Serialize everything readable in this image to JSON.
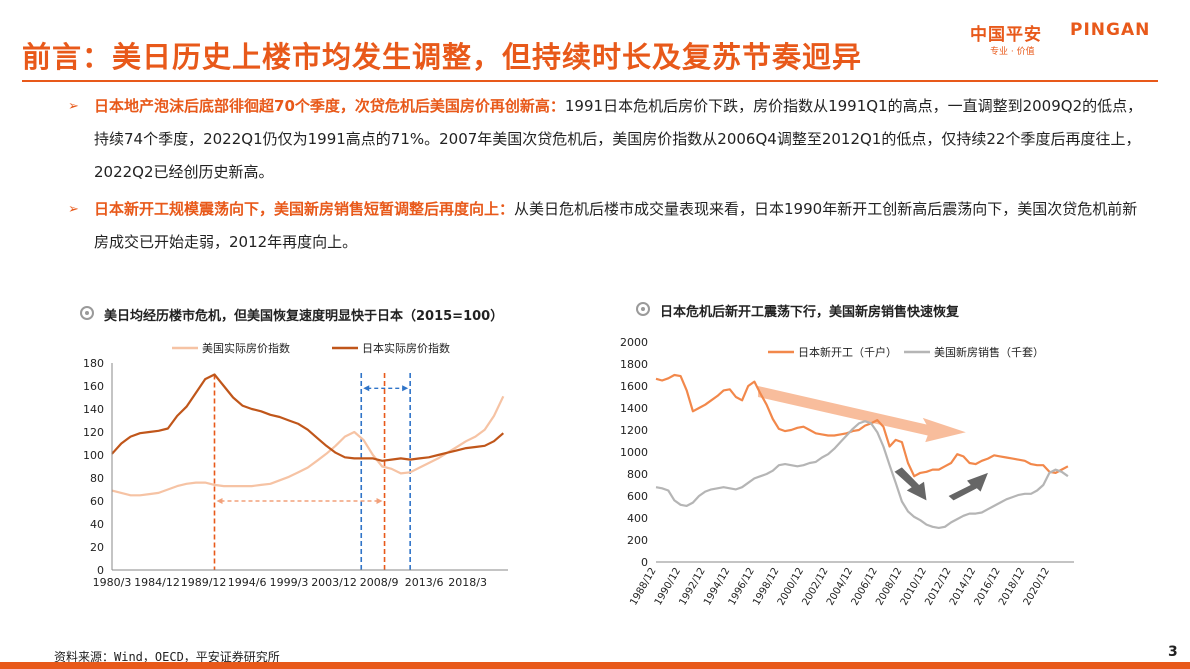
{
  "header": {
    "title": "前言：美日历史上楼市均发生调整，但持续时长及复苏节奏迥异",
    "logo_cn": "中国平安",
    "logo_en": "PINGAN",
    "logo_sub": "专业 · 价值"
  },
  "bullets": [
    {
      "highlight": "日本地产泡沫后底部徘徊超70个季度，次贷危机后美国房价再创新高：",
      "text": "1991日本危机后房价下跌，房价指数从1991Q1的高点，一直调整到2009Q2的低点，持续74个季度，2022Q1仍仅为1991高点的71%。2007年美国次贷危机后，美国房价指数从2006Q4调整至2012Q1的低点，仅持续22个季度后再度往上，2022Q2已经创历史新高。"
    },
    {
      "highlight": "日本新开工规模震荡向下，美国新房销售短暂调整后再度向上：",
      "text": "从美日危机后楼市成交量表现来看，日本1990年新开工创新高后震荡向下，美国次贷危机前新房成交已开始走弱，2012年再度向上。"
    }
  ],
  "footer": {
    "source": "资料来源：Wind，OECD，平安证券研究所",
    "page": "3"
  },
  "chart_data": [
    {
      "type": "line",
      "title": "美日均经历楼市危机，但美国恢复速度明显快于日本（2015=100）",
      "ylim": [
        0,
        180
      ],
      "yticks": [
        0,
        20,
        40,
        60,
        80,
        100,
        120,
        140,
        160,
        180
      ],
      "xlim": [
        1980.0,
        2022.5
      ],
      "xtick_labels": [
        {
          "pos": 1980.0,
          "label": "1980/3"
        },
        {
          "pos": 1984.83,
          "label": "1984/12"
        },
        {
          "pos": 1989.83,
          "label": "1989/12"
        },
        {
          "pos": 1994.5,
          "label": "1994/6"
        },
        {
          "pos": 1999.0,
          "label": "1999/3"
        },
        {
          "pos": 2003.83,
          "label": "2003/12"
        },
        {
          "pos": 2008.67,
          "label": "2008/9"
        },
        {
          "pos": 2013.5,
          "label": "2013/6"
        },
        {
          "pos": 2018.17,
          "label": "2018/3"
        }
      ],
      "legend_position": "top",
      "series": [
        {
          "name": "美国实际房价指数",
          "color": "#f6c3a4",
          "points": [
            [
              1980.0,
              69
            ],
            [
              1981.0,
              67
            ],
            [
              1982.0,
              65
            ],
            [
              1983.0,
              65
            ],
            [
              1984.0,
              66
            ],
            [
              1985.0,
              67
            ],
            [
              1986.0,
              70
            ],
            [
              1987.0,
              73
            ],
            [
              1988.0,
              75
            ],
            [
              1989.0,
              76
            ],
            [
              1990.0,
              76
            ],
            [
              1991.0,
              74
            ],
            [
              1992.0,
              73
            ],
            [
              1993.0,
              73
            ],
            [
              1994.0,
              73
            ],
            [
              1995.0,
              73
            ],
            [
              1996.0,
              74
            ],
            [
              1997.0,
              75
            ],
            [
              1998.0,
              78
            ],
            [
              1999.0,
              81
            ],
            [
              2000.0,
              85
            ],
            [
              2001.0,
              89
            ],
            [
              2002.0,
              95
            ],
            [
              2003.0,
              101
            ],
            [
              2004.0,
              108
            ],
            [
              2005.0,
              116
            ],
            [
              2006.0,
              120
            ],
            [
              2007.0,
              113
            ],
            [
              2008.0,
              100
            ],
            [
              2009.0,
              90
            ],
            [
              2010.0,
              88
            ],
            [
              2011.0,
              84
            ],
            [
              2012.0,
              85
            ],
            [
              2013.0,
              89
            ],
            [
              2014.0,
              93
            ],
            [
              2015.0,
              97
            ],
            [
              2016.0,
              102
            ],
            [
              2017.0,
              107
            ],
            [
              2018.0,
              112
            ],
            [
              2019.0,
              116
            ],
            [
              2020.0,
              122
            ],
            [
              2021.0,
              134
            ],
            [
              2022.0,
              151
            ]
          ]
        },
        {
          "name": "日本实际房价指数",
          "color": "#c0561a",
          "points": [
            [
              1980.0,
              101
            ],
            [
              1981.0,
              110
            ],
            [
              1982.0,
              116
            ],
            [
              1983.0,
              119
            ],
            [
              1984.0,
              120
            ],
            [
              1985.0,
              121
            ],
            [
              1986.0,
              123
            ],
            [
              1987.0,
              134
            ],
            [
              1988.0,
              142
            ],
            [
              1989.0,
              154
            ],
            [
              1990.0,
              166
            ],
            [
              1991.0,
              170
            ],
            [
              1992.0,
              160
            ],
            [
              1993.0,
              150
            ],
            [
              1994.0,
              143
            ],
            [
              1995.0,
              140
            ],
            [
              1996.0,
              138
            ],
            [
              1997.0,
              135
            ],
            [
              1998.0,
              133
            ],
            [
              1999.0,
              130
            ],
            [
              2000.0,
              127
            ],
            [
              2001.0,
              122
            ],
            [
              2002.0,
              115
            ],
            [
              2003.0,
              108
            ],
            [
              2004.0,
              102
            ],
            [
              2005.0,
              98
            ],
            [
              2006.0,
              97
            ],
            [
              2007.0,
              97
            ],
            [
              2008.0,
              97
            ],
            [
              2009.0,
              95
            ],
            [
              2010.0,
              96
            ],
            [
              2011.0,
              97
            ],
            [
              2012.0,
              96
            ],
            [
              2013.0,
              97
            ],
            [
              2014.0,
              98
            ],
            [
              2015.0,
              100
            ],
            [
              2016.0,
              102
            ],
            [
              2017.0,
              104
            ],
            [
              2018.0,
              106
            ],
            [
              2019.0,
              107
            ],
            [
              2020.0,
              108
            ],
            [
              2021.0,
              112
            ],
            [
              2022.0,
              119
            ]
          ]
        }
      ],
      "annotations": {
        "japan_peak": 1991.0,
        "japan_trough": 2009.25,
        "us_peak": 2006.75,
        "us_trough": 2012.0
      }
    },
    {
      "type": "line",
      "title": "日本危机后新开工震荡下行，美国新房销售快速恢复",
      "ylim": [
        0,
        2000
      ],
      "yticks": [
        0,
        200,
        400,
        600,
        800,
        1000,
        1200,
        1400,
        1600,
        1800,
        2000
      ],
      "xlim": [
        1988.0,
        2022.0
      ],
      "xtick_labels": [
        {
          "pos": 1988.0,
          "label": "1988/12"
        },
        {
          "pos": 1990.0,
          "label": "1990/12"
        },
        {
          "pos": 1992.0,
          "label": "1992/12"
        },
        {
          "pos": 1994.0,
          "label": "1994/12"
        },
        {
          "pos": 1996.0,
          "label": "1996/12"
        },
        {
          "pos": 1998.0,
          "label": "1998/12"
        },
        {
          "pos": 2000.0,
          "label": "2000/12"
        },
        {
          "pos": 2002.0,
          "label": "2002/12"
        },
        {
          "pos": 2004.0,
          "label": "2004/12"
        },
        {
          "pos": 2006.0,
          "label": "2006/12"
        },
        {
          "pos": 2008.0,
          "label": "2008/12"
        },
        {
          "pos": 2010.0,
          "label": "2010/12"
        },
        {
          "pos": 2012.0,
          "label": "2012/12"
        },
        {
          "pos": 2014.0,
          "label": "2014/12"
        },
        {
          "pos": 2016.0,
          "label": "2016/12"
        },
        {
          "pos": 2018.0,
          "label": "2018/12"
        },
        {
          "pos": 2020.0,
          "label": "2020/12"
        }
      ],
      "legend_position": "top",
      "series": [
        {
          "name": "日本新开工（千户）",
          "color": "#f2884b",
          "points": [
            [
              1988.0,
              1665
            ],
            [
              1988.5,
              1650
            ],
            [
              1989.0,
              1670
            ],
            [
              1989.5,
              1700
            ],
            [
              1990.0,
              1690
            ],
            [
              1990.5,
              1560
            ],
            [
              1991.0,
              1370
            ],
            [
              1991.5,
              1400
            ],
            [
              1992.0,
              1430
            ],
            [
              1992.5,
              1470
            ],
            [
              1993.0,
              1510
            ],
            [
              1993.5,
              1560
            ],
            [
              1994.0,
              1570
            ],
            [
              1994.5,
              1500
            ],
            [
              1995.0,
              1470
            ],
            [
              1995.5,
              1600
            ],
            [
              1996.0,
              1640
            ],
            [
              1996.5,
              1530
            ],
            [
              1997.0,
              1430
            ],
            [
              1997.5,
              1300
            ],
            [
              1998.0,
              1210
            ],
            [
              1998.5,
              1190
            ],
            [
              1999.0,
              1200
            ],
            [
              1999.5,
              1220
            ],
            [
              2000.0,
              1230
            ],
            [
              2000.5,
              1200
            ],
            [
              2001.0,
              1170
            ],
            [
              2001.5,
              1160
            ],
            [
              2002.0,
              1150
            ],
            [
              2002.5,
              1150
            ],
            [
              2003.0,
              1160
            ],
            [
              2003.5,
              1170
            ],
            [
              2004.0,
              1190
            ],
            [
              2004.5,
              1200
            ],
            [
              2005.0,
              1240
            ],
            [
              2005.5,
              1260
            ],
            [
              2006.0,
              1290
            ],
            [
              2006.5,
              1230
            ],
            [
              2007.0,
              1050
            ],
            [
              2007.5,
              1110
            ],
            [
              2008.0,
              1090
            ],
            [
              2008.5,
              900
            ],
            [
              2009.0,
              780
            ],
            [
              2009.5,
              810
            ],
            [
              2010.0,
              820
            ],
            [
              2010.5,
              840
            ],
            [
              2011.0,
              840
            ],
            [
              2011.5,
              870
            ],
            [
              2012.0,
              900
            ],
            [
              2012.5,
              980
            ],
            [
              2013.0,
              960
            ],
            [
              2013.5,
              900
            ],
            [
              2014.0,
              890
            ],
            [
              2014.5,
              920
            ],
            [
              2015.0,
              940
            ],
            [
              2015.5,
              970
            ],
            [
              2016.0,
              960
            ],
            [
              2016.5,
              950
            ],
            [
              2017.0,
              940
            ],
            [
              2017.5,
              930
            ],
            [
              2018.0,
              920
            ],
            [
              2018.5,
              890
            ],
            [
              2019.0,
              880
            ],
            [
              2019.5,
              880
            ],
            [
              2020.0,
              820
            ],
            [
              2020.5,
              810
            ],
            [
              2021.0,
              840
            ],
            [
              2021.5,
              870
            ]
          ]
        },
        {
          "name": "美国新房销售（千套）",
          "color": "#b5b5b5",
          "points": [
            [
              1988.0,
              680
            ],
            [
              1988.5,
              670
            ],
            [
              1989.0,
              650
            ],
            [
              1989.5,
              560
            ],
            [
              1990.0,
              520
            ],
            [
              1990.5,
              510
            ],
            [
              1991.0,
              540
            ],
            [
              1991.5,
              600
            ],
            [
              1992.0,
              640
            ],
            [
              1992.5,
              660
            ],
            [
              1993.0,
              670
            ],
            [
              1993.5,
              680
            ],
            [
              1994.0,
              670
            ],
            [
              1994.5,
              660
            ],
            [
              1995.0,
              680
            ],
            [
              1995.5,
              720
            ],
            [
              1996.0,
              760
            ],
            [
              1996.5,
              780
            ],
            [
              1997.0,
              800
            ],
            [
              1997.5,
              830
            ],
            [
              1998.0,
              880
            ],
            [
              1998.5,
              890
            ],
            [
              1999.0,
              880
            ],
            [
              1999.5,
              870
            ],
            [
              2000.0,
              880
            ],
            [
              2000.5,
              900
            ],
            [
              2001.0,
              910
            ],
            [
              2001.5,
              950
            ],
            [
              2002.0,
              980
            ],
            [
              2002.5,
              1030
            ],
            [
              2003.0,
              1090
            ],
            [
              2003.5,
              1150
            ],
            [
              2004.0,
              1210
            ],
            [
              2004.5,
              1260
            ],
            [
              2005.0,
              1280
            ],
            [
              2005.5,
              1260
            ],
            [
              2006.0,
              1180
            ],
            [
              2006.5,
              1050
            ],
            [
              2007.0,
              880
            ],
            [
              2007.5,
              720
            ],
            [
              2008.0,
              550
            ],
            [
              2008.5,
              460
            ],
            [
              2009.0,
              410
            ],
            [
              2009.5,
              380
            ],
            [
              2010.0,
              340
            ],
            [
              2010.5,
              320
            ],
            [
              2011.0,
              310
            ],
            [
              2011.5,
              320
            ],
            [
              2012.0,
              360
            ],
            [
              2012.5,
              390
            ],
            [
              2013.0,
              420
            ],
            [
              2013.5,
              440
            ],
            [
              2014.0,
              440
            ],
            [
              2014.5,
              450
            ],
            [
              2015.0,
              480
            ],
            [
              2015.5,
              510
            ],
            [
              2016.0,
              540
            ],
            [
              2016.5,
              570
            ],
            [
              2017.0,
              590
            ],
            [
              2017.5,
              610
            ],
            [
              2018.0,
              620
            ],
            [
              2018.5,
              620
            ],
            [
              2019.0,
              650
            ],
            [
              2019.5,
              700
            ],
            [
              2020.0,
              810
            ],
            [
              2020.5,
              840
            ],
            [
              2021.0,
              820
            ],
            [
              2021.5,
              780
            ]
          ]
        }
      ]
    }
  ]
}
